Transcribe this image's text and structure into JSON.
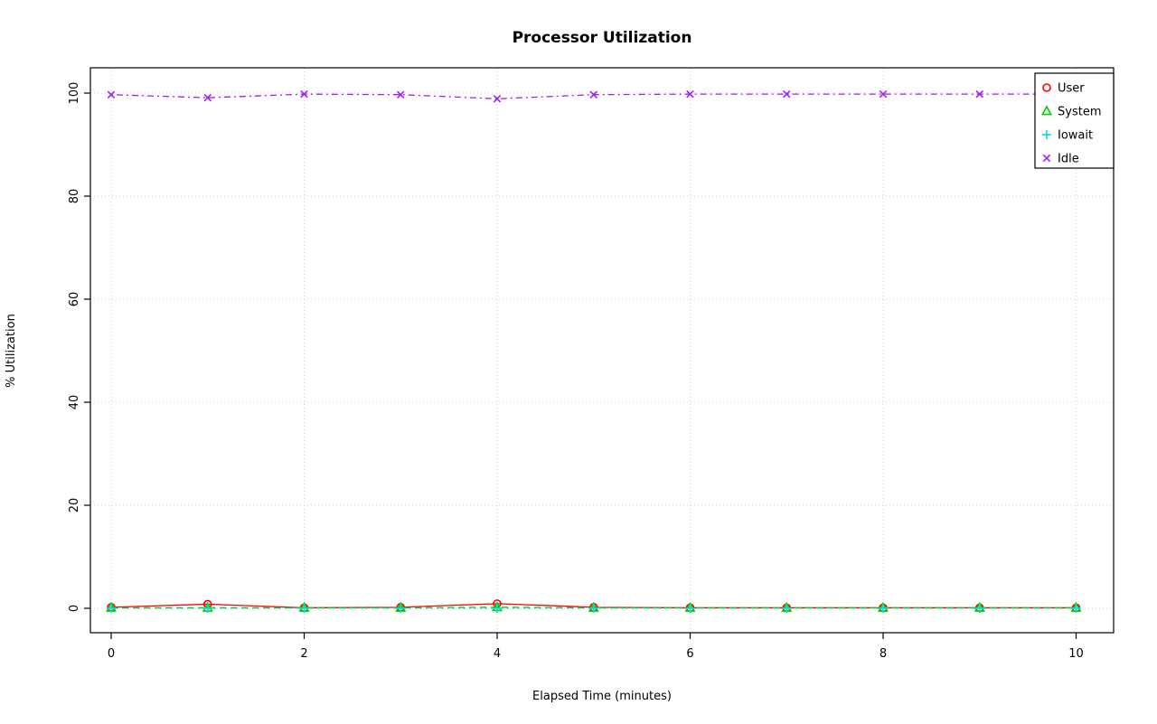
{
  "chart_data": {
    "type": "line",
    "title": "Processor Utilization",
    "xlabel": "Elapsed Time (minutes)",
    "ylabel": "% Utilization",
    "x": [
      0,
      1,
      2,
      3,
      4,
      5,
      6,
      7,
      8,
      9,
      10
    ],
    "series": [
      {
        "name": "User",
        "color": "#FF0000",
        "marker": "circle",
        "line": "solid",
        "values": [
          0.2,
          0.8,
          0.1,
          0.2,
          0.9,
          0.2,
          0.1,
          0.1,
          0.1,
          0.1,
          0.1
        ]
      },
      {
        "name": "System",
        "color": "#00CD00",
        "marker": "triangle",
        "line": "dashed",
        "values": [
          0.1,
          0.1,
          0.1,
          0.1,
          0.2,
          0.1,
          0.1,
          0.1,
          0.1,
          0.1,
          0.1
        ]
      },
      {
        "name": "Iowait",
        "color": "#00E0E0",
        "marker": "plus",
        "line": "dotted",
        "values": [
          0.0,
          0.0,
          0.0,
          0.0,
          0.0,
          0.0,
          0.0,
          0.0,
          0.0,
          0.0,
          0.0
        ]
      },
      {
        "name": "Idle",
        "color": "#A020F0",
        "marker": "x",
        "line": "dotdash",
        "values": [
          99.7,
          99.1,
          99.8,
          99.7,
          98.9,
          99.7,
          99.8,
          99.8,
          99.8,
          99.8,
          99.8
        ]
      }
    ],
    "xticks": [
      0,
      2,
      4,
      6,
      8,
      10
    ],
    "yticks": [
      0,
      20,
      40,
      60,
      80,
      100
    ],
    "xlim": [
      0,
      10
    ],
    "ylim": [
      0,
      100
    ],
    "grid": {
      "show": true,
      "style": "dotted",
      "color": "#D3D3D3"
    },
    "legend": {
      "position": "top-right",
      "entries": [
        "User",
        "System",
        "Iowait",
        "Idle"
      ]
    }
  }
}
